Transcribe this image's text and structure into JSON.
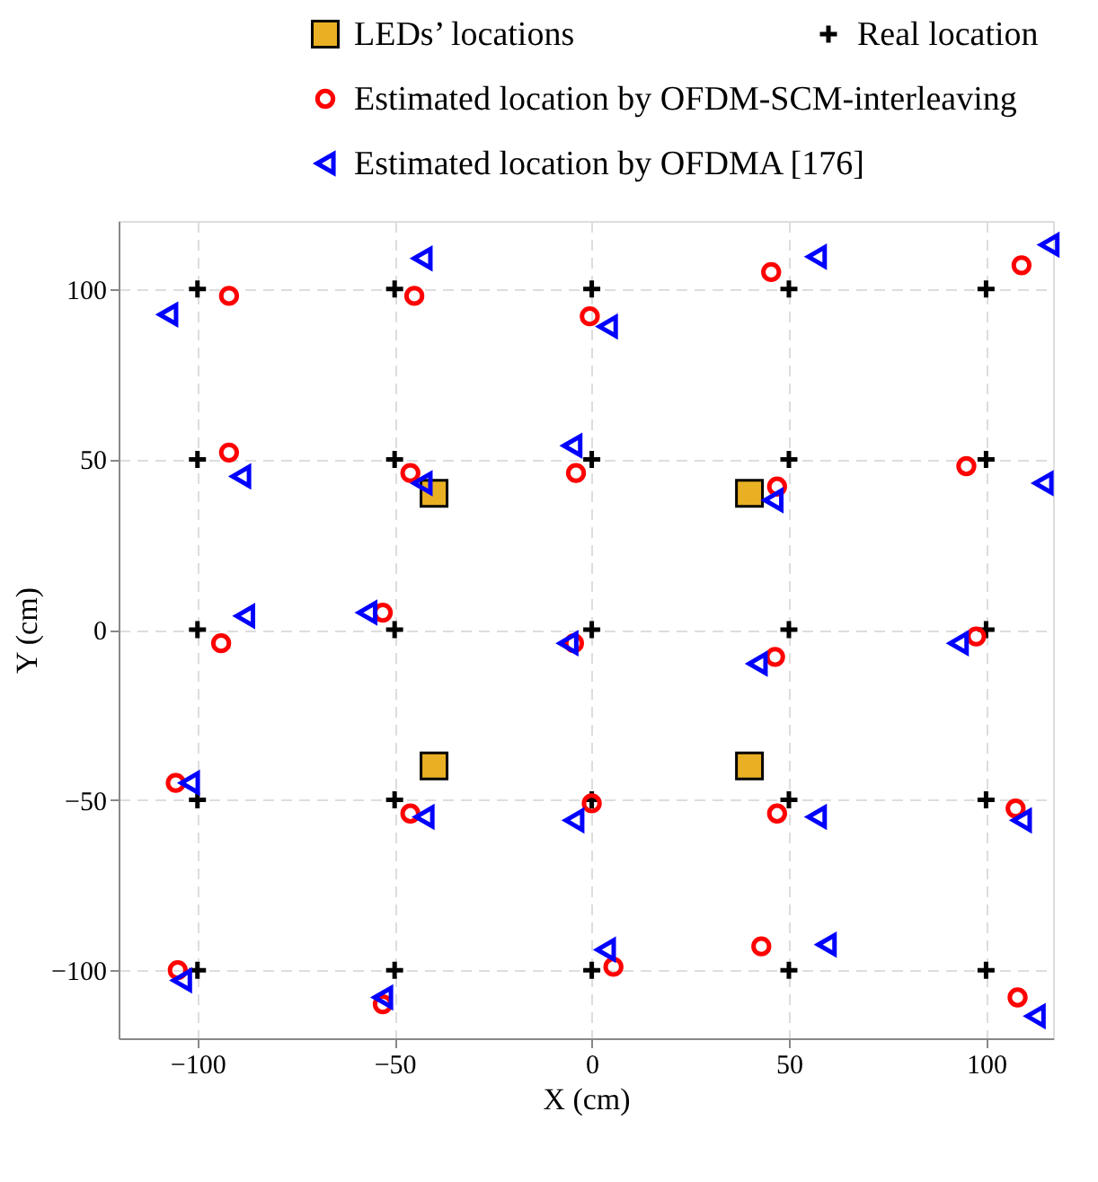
{
  "chart_data": {
    "type": "scatter",
    "xlabel": "X (cm)",
    "ylabel": "Y (cm)",
    "xlim": [
      -120,
      117
    ],
    "ylim": [
      -120,
      120
    ],
    "xticks": [
      -100,
      -50,
      0,
      50,
      100
    ],
    "yticks": [
      -100,
      -50,
      0,
      50,
      100
    ],
    "grid": true,
    "legend": "top",
    "series": [
      {
        "name": "LEDs’ locations",
        "color": "#e9b023",
        "marker": "square",
        "x": [
          -40,
          40,
          -40,
          40
        ],
        "values": [
          40,
          40,
          -40,
          -40
        ]
      },
      {
        "name": "Real location",
        "color": "#000000",
        "marker": "cross",
        "x": [
          -100,
          -50,
          0,
          50,
          100,
          -100,
          -50,
          0,
          50,
          100,
          -100,
          -50,
          0,
          50,
          100,
          -100,
          -50,
          0,
          50,
          100,
          -100,
          -50,
          0,
          50,
          100
        ],
        "values": [
          100,
          100,
          100,
          100,
          100,
          50,
          50,
          50,
          50,
          50,
          0,
          0,
          0,
          0,
          0,
          -50,
          -50,
          -50,
          -50,
          -50,
          -100,
          -100,
          -100,
          -100,
          -100
        ]
      },
      {
        "name": "Estimated  location by OFDM-SCM-interleaving",
        "color": "#ff0000",
        "marker": "circle",
        "x": [
          -92,
          -45,
          -0.5,
          45.5,
          109,
          -92,
          -46,
          -4,
          47,
          95,
          -94,
          -53,
          -4.5,
          46.5,
          97.5,
          -105.5,
          -46,
          0,
          47,
          107.5,
          -105,
          -53,
          5.5,
          43,
          108
        ],
        "values": [
          98,
          98,
          92,
          105,
          107,
          52,
          46,
          46,
          42,
          48,
          -4,
          5,
          -4,
          -8,
          -2,
          -45,
          -54,
          -51,
          -54,
          -52.5,
          -100,
          -110,
          -99,
          -93,
          -108
        ]
      },
      {
        "name": "Estimated  location by OFDMA [176]",
        "color": "#0000ff",
        "marker": "triangle-left",
        "x": [
          -107.5,
          -43,
          4,
          57,
          116,
          -89,
          -43,
          -5,
          46,
          114.5,
          -88,
          -57,
          -6,
          42,
          93,
          -102,
          -42.5,
          -4.5,
          57,
          109,
          -104,
          -53,
          3.5,
          59.5,
          112.5
        ],
        "values": [
          92.5,
          109,
          89,
          109.5,
          113,
          45,
          43,
          54,
          38,
          43,
          4,
          5,
          -4,
          -10,
          -4,
          -45,
          -55,
          -56,
          -55,
          -56,
          -103,
          -108,
          -94,
          -92.5,
          -113.5
        ]
      }
    ]
  }
}
